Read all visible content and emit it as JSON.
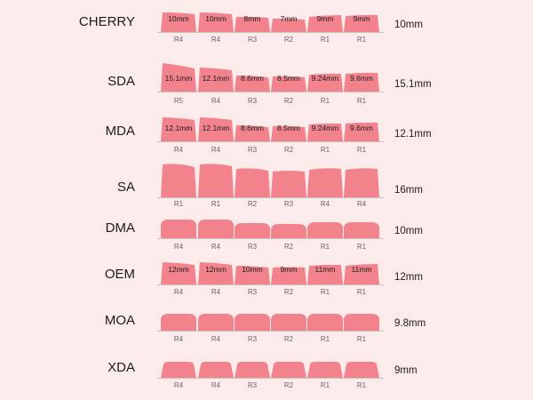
{
  "colors": {
    "background": "#fcebeb",
    "keycap": "#f2838d",
    "baseline": "#bdb3b3"
  },
  "profiles": [
    {
      "name": "CHERRY",
      "height": "10mm",
      "shape": "cherry",
      "keys": [
        {
          "row": "R4",
          "label": "10mm"
        },
        {
          "row": "R4",
          "label": "10mm"
        },
        {
          "row": "R3",
          "label": "8mm"
        },
        {
          "row": "R2",
          "label": "7mm"
        },
        {
          "row": "R1",
          "label": "9mm"
        },
        {
          "row": "R1",
          "label": "9mm"
        }
      ]
    },
    {
      "name": "SDA",
      "height": "15.1mm",
      "shape": "sda",
      "keys": [
        {
          "row": "R5",
          "label": "15.1mm"
        },
        {
          "row": "R4",
          "label": "12.1mm"
        },
        {
          "row": "R3",
          "label": "8.6mm"
        },
        {
          "row": "R2",
          "label": "8.5mm"
        },
        {
          "row": "R1",
          "label": "9.24mm"
        },
        {
          "row": "R1",
          "label": "9.6mm"
        }
      ]
    },
    {
      "name": "MDA",
      "height": "12.1mm",
      "shape": "mda",
      "keys": [
        {
          "row": "R4",
          "label": "12.1mm"
        },
        {
          "row": "R4",
          "label": "12.1mm"
        },
        {
          "row": "R3",
          "label": "8.6mm"
        },
        {
          "row": "R2",
          "label": "8.5mm"
        },
        {
          "row": "R1",
          "label": "9.24mm"
        },
        {
          "row": "R1",
          "label": "9.6mm"
        }
      ]
    },
    {
      "name": "SA",
      "height": "16mm",
      "shape": "sa",
      "keys": [
        {
          "row": "R1",
          "label": ""
        },
        {
          "row": "R1",
          "label": ""
        },
        {
          "row": "R2",
          "label": ""
        },
        {
          "row": "R3",
          "label": ""
        },
        {
          "row": "R4",
          "label": ""
        },
        {
          "row": "R4",
          "label": ""
        }
      ]
    },
    {
      "name": "DMA",
      "height": "10mm",
      "shape": "dma",
      "keys": [
        {
          "row": "R4",
          "label": ""
        },
        {
          "row": "R4",
          "label": ""
        },
        {
          "row": "R3",
          "label": ""
        },
        {
          "row": "R2",
          "label": ""
        },
        {
          "row": "R1",
          "label": ""
        },
        {
          "row": "R1",
          "label": ""
        }
      ]
    },
    {
      "name": "OEM",
      "height": "12mm",
      "shape": "oem",
      "keys": [
        {
          "row": "R4",
          "label": "12mm"
        },
        {
          "row": "R4",
          "label": "12mm"
        },
        {
          "row": "R3",
          "label": "10mm"
        },
        {
          "row": "R2",
          "label": "9mm"
        },
        {
          "row": "R1",
          "label": "11mm"
        },
        {
          "row": "R1",
          "label": "11mm"
        }
      ]
    },
    {
      "name": "MOA",
      "height": "9.8mm",
      "shape": "moa",
      "keys": [
        {
          "row": "R4",
          "label": ""
        },
        {
          "row": "R4",
          "label": ""
        },
        {
          "row": "R3",
          "label": ""
        },
        {
          "row": "R2",
          "label": ""
        },
        {
          "row": "R1",
          "label": ""
        },
        {
          "row": "R1",
          "label": ""
        }
      ]
    },
    {
      "name": "XDA",
      "height": "9mm",
      "shape": "xda",
      "keys": [
        {
          "row": "R4",
          "label": ""
        },
        {
          "row": "R4",
          "label": ""
        },
        {
          "row": "R3",
          "label": ""
        },
        {
          "row": "R2",
          "label": ""
        },
        {
          "row": "R1",
          "label": ""
        },
        {
          "row": "R1",
          "label": ""
        }
      ]
    }
  ]
}
